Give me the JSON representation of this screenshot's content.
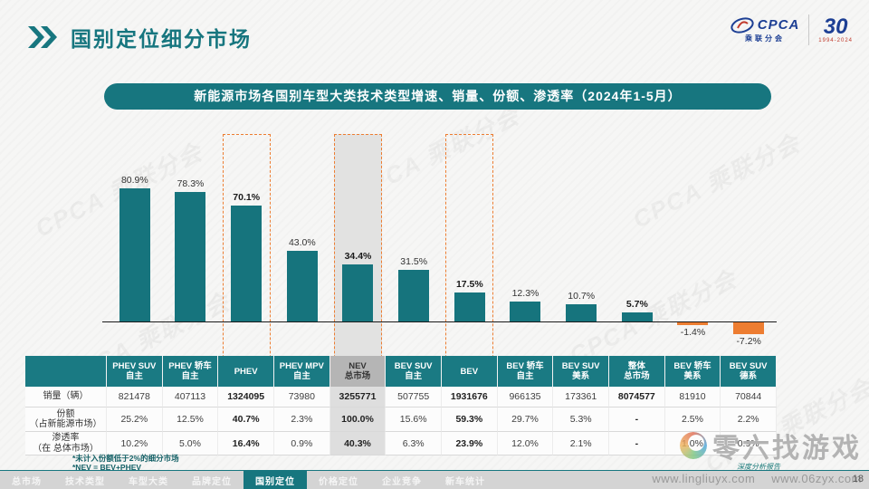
{
  "header": {
    "title": "国别定位细分市场",
    "logo": {
      "cpca": "CPCA",
      "cpca_sub": "乘联分会",
      "anniv": "30",
      "anniv_years": "1994-2024"
    }
  },
  "banner": {
    "text": "新能源市场各国别车型大类技术类型增速、销量、份额、渗透率（2024年1-5月）"
  },
  "chart_data": {
    "type": "bar",
    "title": "新能源市场各国别车型大类技术类型增速、销量、份额、渗透率（2024年1-5月）",
    "categories": [
      "PHEV SUV 自主",
      "PHEV 轿车 自主",
      "PHEV",
      "PHEV MPV 自主",
      "NEV 总市场",
      "BEV SUV 自主",
      "BEV",
      "BEV 轿车 自主",
      "BEV SUV 美系",
      "整体 总市场",
      "BEV 轿车 美系",
      "BEV SUV 德系"
    ],
    "values": [
      80.9,
      78.3,
      70.1,
      43.0,
      34.4,
      31.5,
      17.5,
      12.3,
      10.7,
      5.7,
      -1.4,
      -7.2
    ],
    "unit": "%",
    "ylabel": "增速",
    "ylim": [
      -10,
      90
    ],
    "grid": false,
    "legend": "none",
    "bar_color": "#16747d",
    "negative_color": "#ed7d31",
    "bold_label_indices": [
      2,
      4,
      6,
      9
    ],
    "highlight_box_indices": [
      2,
      4,
      6
    ],
    "gray_band_index": 4
  },
  "table": {
    "columns": [
      {
        "line1": "PHEV SUV",
        "line2": "自主"
      },
      {
        "line1": "PHEV 轿车",
        "line2": "自主"
      },
      {
        "line1": "PHEV",
        "line2": ""
      },
      {
        "line1": "PHEV MPV",
        "line2": "自主"
      },
      {
        "line1": "NEV",
        "line2": "总市场"
      },
      {
        "line1": "BEV SUV",
        "line2": "自主"
      },
      {
        "line1": "BEV",
        "line2": ""
      },
      {
        "line1": "BEV 轿车",
        "line2": "自主"
      },
      {
        "line1": "BEV SUV",
        "line2": "美系"
      },
      {
        "line1": "整体",
        "line2": "总市场"
      },
      {
        "line1": "BEV 轿车",
        "line2": "美系"
      },
      {
        "line1": "BEV SUV",
        "line2": "德系"
      }
    ],
    "rows": [
      {
        "label1": "销量（辆）",
        "label2": "",
        "values": [
          "821478",
          "407113",
          "1324095",
          "73980",
          "3255771",
          "507755",
          "1931676",
          "966135",
          "173361",
          "8074577",
          "81910",
          "70844"
        ]
      },
      {
        "label1": "份额",
        "label2": "（占新能源市场）",
        "values": [
          "25.2%",
          "12.5%",
          "40.7%",
          "2.3%",
          "100.0%",
          "15.6%",
          "59.3%",
          "29.7%",
          "5.3%",
          "-",
          "2.5%",
          "2.2%"
        ]
      },
      {
        "label1": "渗透率",
        "label2": "（在 总体市场）",
        "values": [
          "10.2%",
          "5.0%",
          "16.4%",
          "0.9%",
          "40.3%",
          "6.3%",
          "23.9%",
          "12.0%",
          "2.1%",
          "-",
          "1.0%",
          "0.9%"
        ]
      }
    ],
    "bold_column_indices": [
      2,
      4,
      6,
      9
    ],
    "gray_column_index": 4
  },
  "footnotes": [
    "*未计入份额低于2%的细分市场",
    "*NEV = BEV+PHEV"
  ],
  "nav": {
    "items": [
      "总市场",
      "技术类型",
      "车型大类",
      "品牌定位",
      "国别定位",
      "价格定位",
      "企业竞争",
      "新车统计"
    ],
    "active_index": 4
  },
  "watermark_brand": {
    "name": "零六找游戏",
    "slogan": "深度分析报告",
    "url1": "www.lingliuyx.com",
    "url2": "www.06zyx.com"
  },
  "diagonal_watermark": "CPCA 乘联分会",
  "page_number": "18",
  "colors": {
    "accent_teal": "#17767f",
    "bar_teal": "#16747d",
    "orange": "#ed7d31",
    "logo_blue": "#1d3f94"
  }
}
